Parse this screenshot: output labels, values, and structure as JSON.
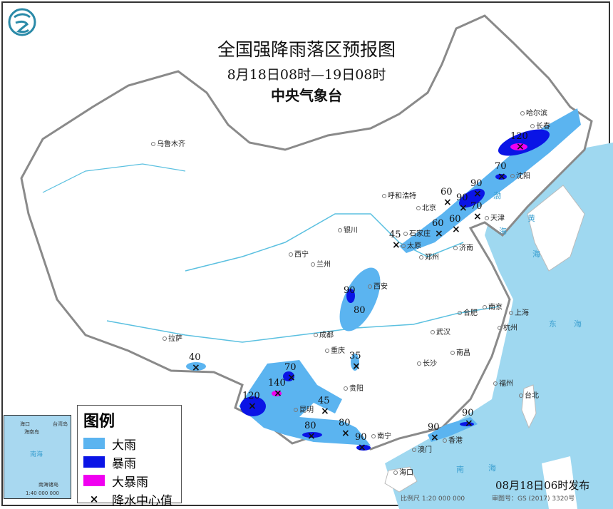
{
  "title": "全国强降雨落区预报图",
  "period": "8月18日08时—19日08时",
  "agency": "中央气象台",
  "logo": "cma-dragon-logo",
  "colors": {
    "heavy_rain": "#5bb4f0",
    "rainstorm": "#0a14e6",
    "heavy_rainstorm": "#f000f0",
    "sea": "#9fd8f0",
    "border": "#999999"
  },
  "legend": {
    "title": "图例",
    "items": [
      {
        "label": "大雨",
        "color": "#5bb4f0"
      },
      {
        "label": "暴雨",
        "color": "#0a14e6"
      },
      {
        "label": "大暴雨",
        "color": "#f000f0"
      },
      {
        "label": "降水中心值",
        "symbol": "×"
      }
    ]
  },
  "cities": [
    "哈尔滨",
    "长春",
    "沈阳",
    "呼和浩特",
    "北京",
    "天津",
    "石家庄",
    "太原",
    "济南",
    "银川",
    "西宁",
    "兰州",
    "郑州",
    "西安",
    "乌鲁木齐",
    "拉萨",
    "成都",
    "重庆",
    "武汉",
    "合肥",
    "南京",
    "上海",
    "杭州",
    "南昌",
    "长沙",
    "贵阳",
    "昆明",
    "南宁",
    "福州",
    "台北",
    "香港",
    "澳门",
    "海口"
  ],
  "seas": [
    "渤",
    "海",
    "黄",
    "海",
    "东",
    "海",
    "南",
    "海"
  ],
  "rain_centers": [
    "120",
    "70",
    "90",
    "60",
    "90",
    "70",
    "60",
    "60",
    "45",
    "90",
    "80",
    "35",
    "40",
    "70",
    "140",
    "120",
    "45",
    "80",
    "80",
    "90",
    "90",
    "90"
  ],
  "inset": {
    "labels": [
      "海口",
      "海南岛",
      "台湾岛",
      "南海",
      "南海诸岛"
    ],
    "scale": "1:40 000 000"
  },
  "issue_time": "08月18日06时发布",
  "scale": "比例尺 1:20 000 000",
  "review_number": "审图号：GS (2017) 3320号"
}
